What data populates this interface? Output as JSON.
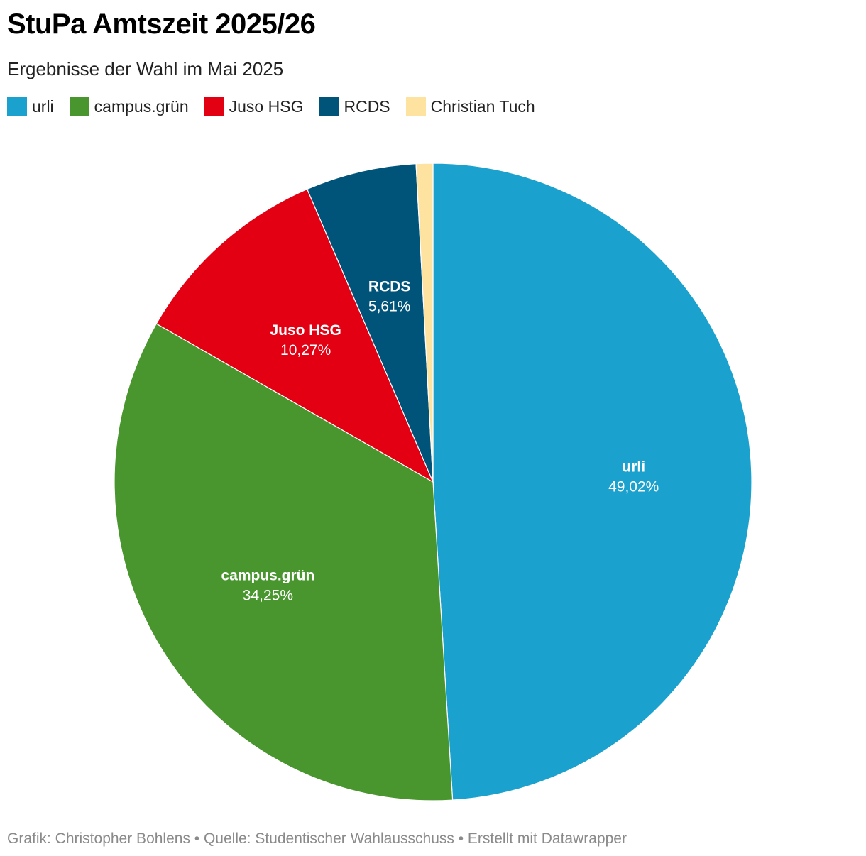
{
  "chart_data": {
    "type": "pie",
    "title": "StuPa Amtszeit 2025/26",
    "subtitle": "Ergebnisse der Wahl im Mai 2025",
    "legend_placement": "top-left",
    "slices": [
      {
        "name": "urli",
        "value": 49.02,
        "display": "49,02%",
        "color": "#1ba1cd",
        "show_label": true
      },
      {
        "name": "campus.grün",
        "value": 34.25,
        "display": "34,25%",
        "color": "#48962d",
        "show_label": true
      },
      {
        "name": "Juso HSG",
        "value": 10.27,
        "display": "10,27%",
        "color": "#e30012",
        "show_label": true
      },
      {
        "name": "RCDS",
        "value": 5.61,
        "display": "5,61%",
        "color": "#00547a",
        "show_label": true
      },
      {
        "name": "Christian Tuch",
        "value": 0.85,
        "display": "",
        "color": "#fde39f",
        "show_label": false
      }
    ]
  },
  "footer": {
    "text": "Grafik: Christopher Bohlens • Quelle: Studentischer Wahlausschuss • Erstellt mit Datawrapper"
  }
}
